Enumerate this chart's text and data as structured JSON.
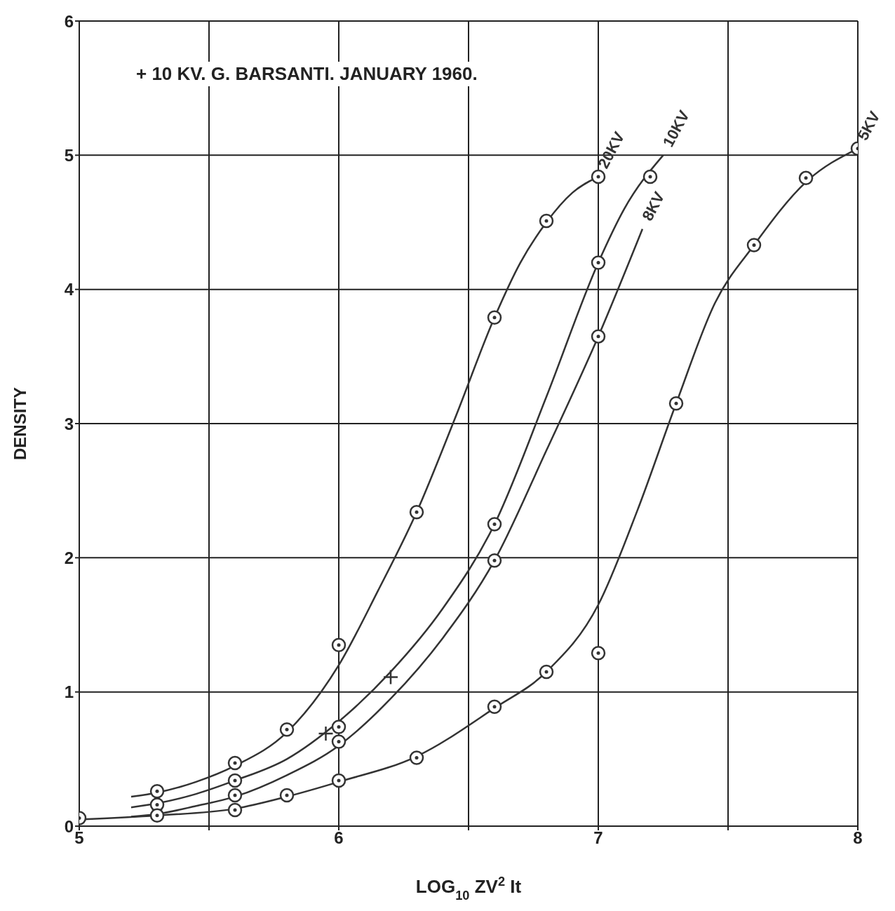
{
  "chart_data": {
    "type": "line",
    "xlabel": "LOG$_{10}$ ZV$^{2}$ It",
    "ylabel": "DENSITY",
    "annotations": [
      "+ 10 KV. G. BARSANTI. JANUARY 1960."
    ],
    "xlim": [
      5,
      8
    ],
    "xticks": [
      5,
      {
        "value": 5.5,
        "label": null
      },
      6,
      {
        "value": 6.5,
        "label": null
      },
      7,
      {
        "value": 7.5,
        "label": null
      },
      8
    ],
    "ylim": [
      0,
      6
    ],
    "yticks": [
      0,
      1,
      2,
      3,
      4,
      5,
      6
    ],
    "grid": true,
    "marker": "none",
    "line_style": "solid",
    "series": [
      {
        "name": "20KV",
        "color": "#333333",
        "x": [
          5.2,
          5.3,
          5.45,
          5.6,
          5.8,
          6.0,
          6.15,
          6.3,
          6.45,
          6.6,
          6.7,
          6.8,
          6.9,
          7.0
        ],
        "values": [
          0.22,
          0.25,
          0.33,
          0.45,
          0.7,
          1.2,
          1.75,
          2.34,
          3.05,
          3.79,
          4.2,
          4.5,
          4.72,
          4.84
        ]
      },
      {
        "name": "10KV",
        "color": "#333333",
        "x": [
          5.2,
          5.3,
          5.45,
          5.6,
          5.8,
          6.0,
          6.2,
          6.4,
          6.6,
          6.8,
          7.0,
          7.1,
          7.25
        ],
        "values": [
          0.14,
          0.17,
          0.24,
          0.34,
          0.5,
          0.78,
          1.15,
          1.62,
          2.25,
          3.2,
          4.2,
          4.6,
          5.0
        ]
      },
      {
        "name": "8KV",
        "color": "#333333",
        "x": [
          5.2,
          5.3,
          5.45,
          5.6,
          5.8,
          6.0,
          6.2,
          6.4,
          6.6,
          6.8,
          7.0,
          7.17
        ],
        "values": [
          0.07,
          0.09,
          0.15,
          0.22,
          0.38,
          0.6,
          0.95,
          1.4,
          1.98,
          2.8,
          3.65,
          4.45
        ]
      },
      {
        "name": "5KV",
        "color": "#333333",
        "x": [
          5.0,
          5.3,
          5.6,
          5.8,
          6.0,
          6.3,
          6.6,
          6.8,
          7.0,
          7.15,
          7.3,
          7.45,
          7.6,
          7.8,
          8.0
        ],
        "values": [
          0.05,
          0.08,
          0.13,
          0.22,
          0.33,
          0.52,
          0.88,
          1.15,
          1.65,
          2.35,
          3.15,
          3.9,
          4.33,
          4.8,
          5.05
        ]
      },
      {
        "type": "scatter",
        "marker": "circle",
        "color": "#333333",
        "x": [
          5.3,
          5.6,
          5.8,
          6.0,
          6.3,
          6.6,
          6.8,
          7.0
        ],
        "values": [
          0.26,
          0.47,
          0.72,
          1.35,
          2.34,
          3.79,
          4.51,
          4.84
        ]
      },
      {
        "type": "scatter",
        "marker": "circle",
        "color": "#333333",
        "x": [
          5.3,
          5.6,
          6.0,
          6.6,
          7.0,
          7.2
        ],
        "values": [
          0.16,
          0.34,
          0.74,
          2.25,
          4.2,
          4.84
        ]
      },
      {
        "type": "scatter",
        "marker": "circle",
        "color": "#333333",
        "x": [
          5.3,
          5.6,
          6.0,
          6.6,
          7.0
        ],
        "values": [
          0.08,
          0.23,
          0.63,
          1.98,
          3.65
        ]
      },
      {
        "type": "scatter",
        "marker": "circle",
        "color": "#333333",
        "x": [
          5.0,
          5.6,
          5.8,
          6.0,
          6.3,
          6.6,
          6.8,
          7.0,
          7.3,
          7.6,
          7.8,
          8.0
        ],
        "values": [
          0.06,
          0.12,
          0.23,
          0.34,
          0.51,
          0.89,
          1.15,
          1.29,
          3.15,
          4.33,
          4.83,
          5.05
        ]
      },
      {
        "type": "scatter",
        "marker": "cross",
        "color": "#333333",
        "x": [
          5.95,
          6.2
        ],
        "values": [
          0.69,
          1.11
        ]
      }
    ]
  }
}
